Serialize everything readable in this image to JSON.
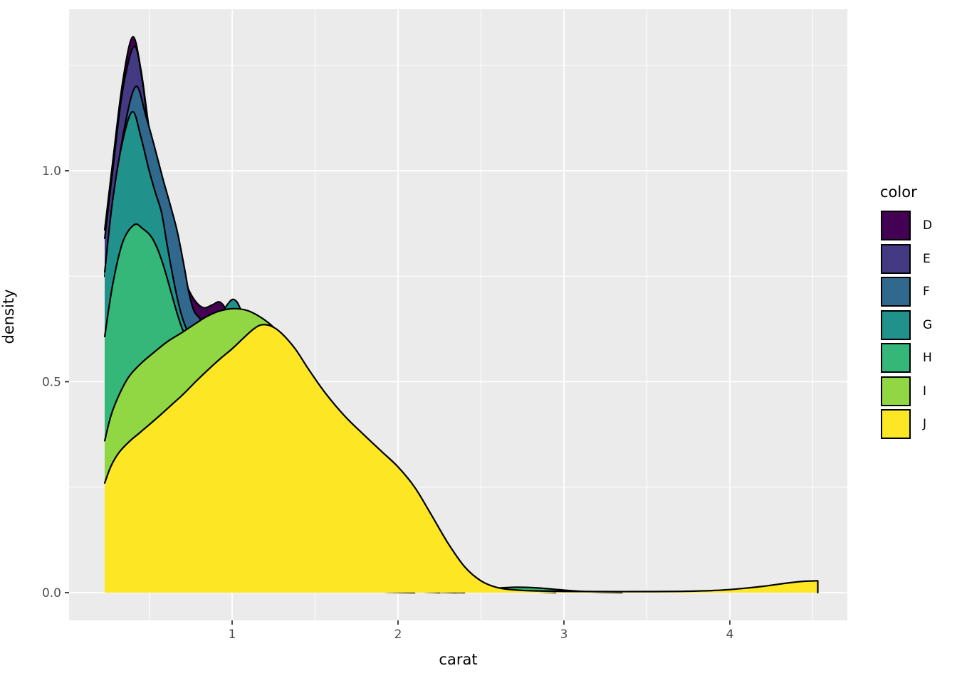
{
  "colors": {
    "panel_bg": "#EBEBEB",
    "grid": "#FFFFFF",
    "tick_mark": "#333333",
    "tick_label": "#4D4D4D",
    "axis_title": "#000000",
    "outline": "#000000"
  },
  "chart_data": {
    "type": "area",
    "subtype": "overlapping-density-curves",
    "title": "",
    "xlabel": "carat",
    "ylabel": "density",
    "legend_title": "color",
    "legend_position": "right",
    "grid": true,
    "x_major_ticks": [
      1,
      2,
      3,
      4
    ],
    "x_tick_labels": [
      "1",
      "2",
      "3",
      "4"
    ],
    "x_minor_ticks": [
      0.5,
      1.5,
      2.5,
      3.5,
      4.5
    ],
    "y_major_ticks": [
      0.0,
      0.5,
      1.0
    ],
    "y_tick_labels": [
      "0.0",
      "0.5",
      "1.0"
    ],
    "y_minor_ticks": [
      0.25,
      0.75,
      1.25
    ],
    "xlim": [
      0.017,
      4.71
    ],
    "ylim": [
      -0.066,
      1.383
    ],
    "legend_entries": [
      {
        "label": "D",
        "color": "#440154"
      },
      {
        "label": "E",
        "color": "#443983"
      },
      {
        "label": "F",
        "color": "#31688E"
      },
      {
        "label": "G",
        "color": "#21918C"
      },
      {
        "label": "H",
        "color": "#35B779"
      },
      {
        "label": "I",
        "color": "#90D743"
      },
      {
        "label": "J",
        "color": "#FDE725"
      }
    ],
    "series": [
      {
        "name": "D",
        "color": "#440154",
        "end_vertical": false,
        "points": [
          [
            0.232,
            0.86
          ],
          [
            0.28,
            1.02
          ],
          [
            0.34,
            1.21
          ],
          [
            0.4,
            1.317
          ],
          [
            0.45,
            1.24
          ],
          [
            0.5,
            1.1
          ],
          [
            0.56,
            0.97
          ],
          [
            0.62,
            0.86
          ],
          [
            0.68,
            0.78
          ],
          [
            0.73,
            0.725
          ],
          [
            0.78,
            0.69
          ],
          [
            0.83,
            0.675
          ],
          [
            0.88,
            0.682
          ],
          [
            0.93,
            0.688
          ],
          [
            0.98,
            0.655
          ],
          [
            1.05,
            0.565
          ],
          [
            1.13,
            0.455
          ],
          [
            1.25,
            0.32
          ],
          [
            1.4,
            0.19
          ],
          [
            1.6,
            0.08
          ],
          [
            1.8,
            0.028
          ],
          [
            2.0,
            0.008
          ],
          [
            2.2,
            0.002
          ],
          [
            2.4,
            0
          ]
        ]
      },
      {
        "name": "E",
        "color": "#443983",
        "end_vertical": false,
        "points": [
          [
            0.232,
            0.84
          ],
          [
            0.28,
            1.0
          ],
          [
            0.34,
            1.19
          ],
          [
            0.41,
            1.295
          ],
          [
            0.46,
            1.21
          ],
          [
            0.5,
            1.08
          ],
          [
            0.53,
            1.0
          ],
          [
            0.56,
            0.91
          ],
          [
            0.59,
            0.84
          ],
          [
            0.63,
            0.74
          ],
          [
            0.67,
            0.645
          ],
          [
            0.72,
            0.55
          ],
          [
            0.78,
            0.45
          ],
          [
            0.86,
            0.345
          ],
          [
            0.95,
            0.26
          ],
          [
            1.08,
            0.165
          ],
          [
            1.25,
            0.085
          ],
          [
            1.45,
            0.032
          ],
          [
            1.65,
            0.01
          ],
          [
            1.9,
            0.002
          ],
          [
            2.1,
            0
          ]
        ]
      },
      {
        "name": "F",
        "color": "#31688E",
        "end_vertical": false,
        "points": [
          [
            0.232,
            0.75
          ],
          [
            0.28,
            0.92
          ],
          [
            0.35,
            1.1
          ],
          [
            0.42,
            1.2
          ],
          [
            0.48,
            1.13
          ],
          [
            0.53,
            1.06
          ],
          [
            0.58,
            0.985
          ],
          [
            0.63,
            0.915
          ],
          [
            0.67,
            0.855
          ],
          [
            0.71,
            0.775
          ],
          [
            0.74,
            0.71
          ],
          [
            0.77,
            0.668
          ],
          [
            0.8,
            0.652
          ],
          [
            0.85,
            0.628
          ],
          [
            0.91,
            0.585
          ],
          [
            1.0,
            0.5
          ],
          [
            1.1,
            0.4
          ],
          [
            1.22,
            0.285
          ],
          [
            1.38,
            0.165
          ],
          [
            1.55,
            0.08
          ],
          [
            1.75,
            0.028
          ],
          [
            2.0,
            0.007
          ],
          [
            2.25,
            0
          ]
        ]
      },
      {
        "name": "G",
        "color": "#21918C",
        "end_vertical": false,
        "points": [
          [
            0.232,
            0.76
          ],
          [
            0.28,
            0.93
          ],
          [
            0.34,
            1.07
          ],
          [
            0.4,
            1.14
          ],
          [
            0.45,
            1.08
          ],
          [
            0.5,
            1.0
          ],
          [
            0.54,
            0.945
          ],
          [
            0.575,
            0.9
          ],
          [
            0.61,
            0.82
          ],
          [
            0.645,
            0.745
          ],
          [
            0.68,
            0.68
          ],
          [
            0.71,
            0.64
          ],
          [
            0.74,
            0.615
          ],
          [
            0.78,
            0.6
          ],
          [
            0.82,
            0.601
          ],
          [
            0.87,
            0.618
          ],
          [
            0.92,
            0.648
          ],
          [
            0.97,
            0.682
          ],
          [
            1.01,
            0.695
          ],
          [
            1.05,
            0.672
          ],
          [
            1.1,
            0.6
          ],
          [
            1.17,
            0.5
          ],
          [
            1.27,
            0.375
          ],
          [
            1.4,
            0.245
          ],
          [
            1.55,
            0.135
          ],
          [
            1.72,
            0.06
          ],
          [
            1.9,
            0.022
          ],
          [
            2.1,
            0.006
          ],
          [
            2.35,
            0
          ]
        ]
      },
      {
        "name": "H",
        "color": "#35B779",
        "end_vertical": false,
        "points": [
          [
            0.232,
            0.607
          ],
          [
            0.28,
            0.73
          ],
          [
            0.34,
            0.83
          ],
          [
            0.41,
            0.872
          ],
          [
            0.46,
            0.863
          ],
          [
            0.51,
            0.845
          ],
          [
            0.55,
            0.815
          ],
          [
            0.59,
            0.77
          ],
          [
            0.63,
            0.715
          ],
          [
            0.67,
            0.66
          ],
          [
            0.7,
            0.625
          ],
          [
            0.74,
            0.596
          ],
          [
            0.79,
            0.576
          ],
          [
            0.85,
            0.558
          ],
          [
            0.92,
            0.543
          ],
          [
            1.0,
            0.524
          ],
          [
            1.09,
            0.493
          ],
          [
            1.2,
            0.44
          ],
          [
            1.32,
            0.362
          ],
          [
            1.45,
            0.27
          ],
          [
            1.58,
            0.19
          ],
          [
            1.72,
            0.12
          ],
          [
            1.86,
            0.068
          ],
          [
            2.0,
            0.037
          ],
          [
            2.15,
            0.02
          ],
          [
            2.3,
            0.012
          ],
          [
            2.45,
            0.009
          ],
          [
            2.6,
            0.011
          ],
          [
            2.72,
            0.013
          ],
          [
            2.85,
            0.011
          ],
          [
            3.0,
            0.006
          ],
          [
            3.15,
            0.002
          ],
          [
            3.35,
            0
          ]
        ]
      },
      {
        "name": "I",
        "color": "#90D743",
        "end_vertical": false,
        "points": [
          [
            0.232,
            0.36
          ],
          [
            0.27,
            0.42
          ],
          [
            0.32,
            0.47
          ],
          [
            0.38,
            0.513
          ],
          [
            0.45,
            0.543
          ],
          [
            0.53,
            0.57
          ],
          [
            0.61,
            0.595
          ],
          [
            0.7,
            0.617
          ],
          [
            0.78,
            0.638
          ],
          [
            0.85,
            0.655
          ],
          [
            0.92,
            0.667
          ],
          [
            1.0,
            0.673
          ],
          [
            1.08,
            0.67
          ],
          [
            1.15,
            0.658
          ],
          [
            1.23,
            0.636
          ],
          [
            1.32,
            0.6
          ],
          [
            1.42,
            0.545
          ],
          [
            1.55,
            0.465
          ],
          [
            1.68,
            0.375
          ],
          [
            1.82,
            0.28
          ],
          [
            1.95,
            0.205
          ],
          [
            2.08,
            0.14
          ],
          [
            2.2,
            0.09
          ],
          [
            2.33,
            0.05
          ],
          [
            2.46,
            0.025
          ],
          [
            2.6,
            0.01
          ],
          [
            2.75,
            0.004
          ],
          [
            2.95,
            0
          ]
        ]
      },
      {
        "name": "J",
        "color": "#FDE725",
        "end_vertical": true,
        "points": [
          [
            0.232,
            0.26
          ],
          [
            0.27,
            0.3
          ],
          [
            0.32,
            0.333
          ],
          [
            0.38,
            0.358
          ],
          [
            0.44,
            0.378
          ],
          [
            0.5,
            0.398
          ],
          [
            0.57,
            0.422
          ],
          [
            0.64,
            0.447
          ],
          [
            0.71,
            0.472
          ],
          [
            0.78,
            0.5
          ],
          [
            0.86,
            0.53
          ],
          [
            0.93,
            0.555
          ],
          [
            1.0,
            0.578
          ],
          [
            1.07,
            0.604
          ],
          [
            1.13,
            0.625
          ],
          [
            1.18,
            0.635
          ],
          [
            1.24,
            0.631
          ],
          [
            1.3,
            0.614
          ],
          [
            1.38,
            0.578
          ],
          [
            1.46,
            0.53
          ],
          [
            1.56,
            0.474
          ],
          [
            1.68,
            0.418
          ],
          [
            1.8,
            0.372
          ],
          [
            1.9,
            0.335
          ],
          [
            2.0,
            0.298
          ],
          [
            2.1,
            0.25
          ],
          [
            2.2,
            0.185
          ],
          [
            2.3,
            0.118
          ],
          [
            2.4,
            0.062
          ],
          [
            2.5,
            0.028
          ],
          [
            2.6,
            0.012
          ],
          [
            2.72,
            0.006
          ],
          [
            2.85,
            0.004
          ],
          [
            3.0,
            0.003
          ],
          [
            3.2,
            0.0025
          ],
          [
            3.45,
            0.0025
          ],
          [
            3.7,
            0.003
          ],
          [
            3.9,
            0.005
          ],
          [
            4.05,
            0.009
          ],
          [
            4.2,
            0.015
          ],
          [
            4.35,
            0.023
          ],
          [
            4.45,
            0.027
          ],
          [
            4.53,
            0.028
          ]
        ]
      }
    ]
  }
}
